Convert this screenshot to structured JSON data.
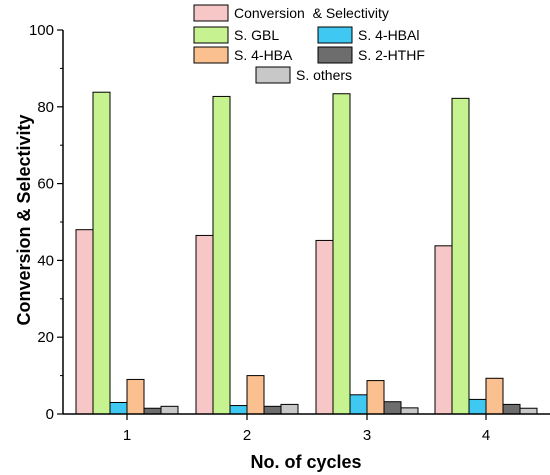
{
  "chart_data": {
    "type": "bar",
    "categories": [
      "1",
      "2",
      "3",
      "4"
    ],
    "xlabel": "No. of cycles",
    "ylabel": "Conversion & Selectivity",
    "ylim": [
      0,
      100
    ],
    "yticks": [
      0,
      20,
      40,
      60,
      80,
      100
    ],
    "grid": false,
    "legend_position": "top",
    "series": [
      {
        "name": "Conversion  & Selectivity",
        "color": "#f7c6c6",
        "values": [
          48.0,
          46.5,
          45.2,
          43.8
        ]
      },
      {
        "name": "S. GBL",
        "color": "#c6f28f",
        "values": [
          83.8,
          82.7,
          83.4,
          82.2
        ]
      },
      {
        "name": "S. 4-HBAl",
        "color": "#3fc8f2",
        "values": [
          3.0,
          2.2,
          5.0,
          3.8
        ]
      },
      {
        "name": "S. 4-HBA",
        "color": "#fbc08f",
        "values": [
          9.0,
          10.0,
          8.7,
          9.3
        ]
      },
      {
        "name": "S. 2-HTHF",
        "color": "#6d6d6d",
        "values": [
          1.5,
          2.0,
          3.2,
          2.5
        ]
      },
      {
        "name": "S. others",
        "color": "#c8c8c8",
        "values": [
          2.0,
          2.5,
          1.6,
          1.5
        ]
      }
    ]
  }
}
